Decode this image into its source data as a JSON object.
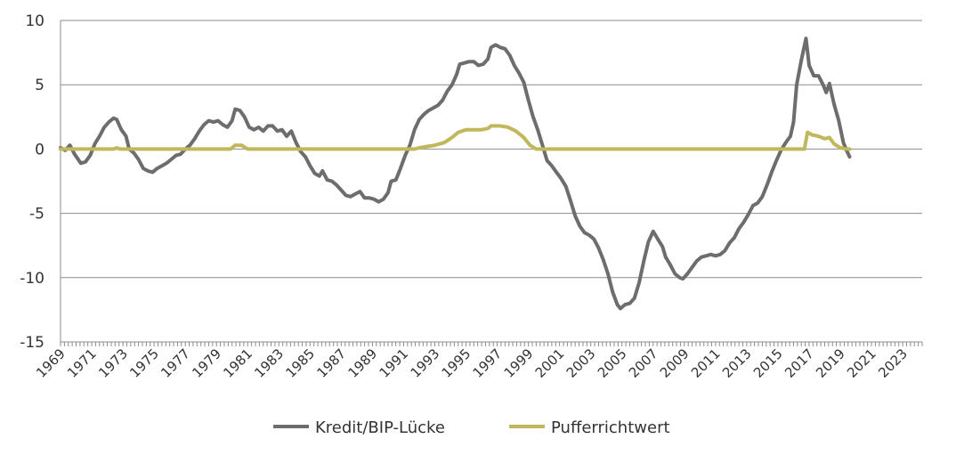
{
  "chart_data": {
    "type": "line",
    "title": "",
    "xlabel": "",
    "ylabel": "",
    "xlim": [
      1969,
      2024.25
    ],
    "ylim": [
      -15,
      10
    ],
    "yticks": [
      10,
      5,
      0,
      -5,
      -10,
      -15
    ],
    "ytick_labels": [
      "10",
      "5",
      "0",
      "-5",
      "-10",
      "-15"
    ],
    "xtick_labels": [
      "1969",
      "1971",
      "1973",
      "1975",
      "1977",
      "1979",
      "1981",
      "1983",
      "1985",
      "1987",
      "1989",
      "1991",
      "1993",
      "1995",
      "1997",
      "1999",
      "2001",
      "2003",
      "2005",
      "2007",
      "2009",
      "2011",
      "2013",
      "2015",
      "2017",
      "2019",
      "2021",
      "2023"
    ],
    "grid": "horizontal",
    "legend_position": "bottom",
    "series": [
      {
        "name": "Kredit/BIP-Lücke",
        "color": "#6d6d6d",
        "points": [
          [
            1969.0,
            0.1
          ],
          [
            1969.3,
            -0.1
          ],
          [
            1969.6,
            0.3
          ],
          [
            1969.9,
            -0.4
          ],
          [
            1970.3,
            -1.1
          ],
          [
            1970.6,
            -1.0
          ],
          [
            1970.9,
            -0.5
          ],
          [
            1971.2,
            0.4
          ],
          [
            1971.5,
            1.0
          ],
          [
            1971.8,
            1.7
          ],
          [
            1972.1,
            2.1
          ],
          [
            1972.4,
            2.4
          ],
          [
            1972.6,
            2.3
          ],
          [
            1972.9,
            1.5
          ],
          [
            1973.2,
            1.0
          ],
          [
            1973.4,
            0.0
          ],
          [
            1973.7,
            -0.3
          ],
          [
            1974.0,
            -0.8
          ],
          [
            1974.3,
            -1.5
          ],
          [
            1974.6,
            -1.7
          ],
          [
            1974.9,
            -1.8
          ],
          [
            1975.2,
            -1.5
          ],
          [
            1975.5,
            -1.3
          ],
          [
            1975.8,
            -1.1
          ],
          [
            1976.1,
            -0.8
          ],
          [
            1976.4,
            -0.5
          ],
          [
            1976.7,
            -0.4
          ],
          [
            1977.0,
            0.0
          ],
          [
            1977.3,
            0.3
          ],
          [
            1977.6,
            0.8
          ],
          [
            1977.9,
            1.4
          ],
          [
            1978.2,
            1.9
          ],
          [
            1978.5,
            2.2
          ],
          [
            1978.8,
            2.1
          ],
          [
            1979.1,
            2.2
          ],
          [
            1979.4,
            1.9
          ],
          [
            1979.7,
            1.7
          ],
          [
            1980.0,
            2.2
          ],
          [
            1980.2,
            3.1
          ],
          [
            1980.5,
            3.0
          ],
          [
            1980.8,
            2.5
          ],
          [
            1981.1,
            1.7
          ],
          [
            1981.4,
            1.5
          ],
          [
            1981.7,
            1.7
          ],
          [
            1982.0,
            1.4
          ],
          [
            1982.3,
            1.8
          ],
          [
            1982.6,
            1.8
          ],
          [
            1982.9,
            1.4
          ],
          [
            1983.2,
            1.5
          ],
          [
            1983.5,
            1.0
          ],
          [
            1983.8,
            1.4
          ],
          [
            1984.1,
            0.5
          ],
          [
            1984.4,
            -0.2
          ],
          [
            1984.7,
            -0.6
          ],
          [
            1985.0,
            -1.3
          ],
          [
            1985.3,
            -1.9
          ],
          [
            1985.6,
            -2.1
          ],
          [
            1985.8,
            -1.7
          ],
          [
            1986.1,
            -2.4
          ],
          [
            1986.4,
            -2.5
          ],
          [
            1986.7,
            -2.8
          ],
          [
            1987.0,
            -3.2
          ],
          [
            1987.3,
            -3.6
          ],
          [
            1987.6,
            -3.7
          ],
          [
            1987.9,
            -3.5
          ],
          [
            1988.2,
            -3.3
          ],
          [
            1988.5,
            -3.8
          ],
          [
            1988.8,
            -3.8
          ],
          [
            1989.1,
            -3.9
          ],
          [
            1989.4,
            -4.1
          ],
          [
            1989.7,
            -3.9
          ],
          [
            1990.0,
            -3.4
          ],
          [
            1990.2,
            -2.5
          ],
          [
            1990.5,
            -2.4
          ],
          [
            1990.8,
            -1.5
          ],
          [
            1991.1,
            -0.5
          ],
          [
            1991.4,
            0.3
          ],
          [
            1991.7,
            1.5
          ],
          [
            1992.0,
            2.3
          ],
          [
            1992.3,
            2.7
          ],
          [
            1992.6,
            3.0
          ],
          [
            1992.9,
            3.2
          ],
          [
            1993.2,
            3.4
          ],
          [
            1993.5,
            3.8
          ],
          [
            1993.8,
            4.5
          ],
          [
            1994.1,
            5.0
          ],
          [
            1994.4,
            5.8
          ],
          [
            1994.6,
            6.6
          ],
          [
            1994.9,
            6.7
          ],
          [
            1995.2,
            6.8
          ],
          [
            1995.5,
            6.8
          ],
          [
            1995.8,
            6.5
          ],
          [
            1996.1,
            6.6
          ],
          [
            1996.4,
            7.0
          ],
          [
            1996.6,
            7.9
          ],
          [
            1996.9,
            8.1
          ],
          [
            1997.2,
            7.9
          ],
          [
            1997.5,
            7.8
          ],
          [
            1997.8,
            7.3
          ],
          [
            1998.1,
            6.5
          ],
          [
            1998.4,
            5.9
          ],
          [
            1998.7,
            5.2
          ],
          [
            1999.0,
            3.8
          ],
          [
            1999.3,
            2.5
          ],
          [
            1999.6,
            1.5
          ],
          [
            1999.9,
            0.3
          ],
          [
            2000.2,
            -0.9
          ],
          [
            2000.5,
            -1.3
          ],
          [
            2000.8,
            -1.8
          ],
          [
            2001.1,
            -2.3
          ],
          [
            2001.4,
            -2.9
          ],
          [
            2001.7,
            -4.0
          ],
          [
            2002.0,
            -5.2
          ],
          [
            2002.3,
            -6.0
          ],
          [
            2002.6,
            -6.5
          ],
          [
            2002.9,
            -6.7
          ],
          [
            2003.2,
            -7.0
          ],
          [
            2003.5,
            -7.7
          ],
          [
            2003.8,
            -8.6
          ],
          [
            2004.1,
            -9.7
          ],
          [
            2004.4,
            -11.1
          ],
          [
            2004.7,
            -12.1
          ],
          [
            2004.9,
            -12.4
          ],
          [
            2005.2,
            -12.1
          ],
          [
            2005.5,
            -12.0
          ],
          [
            2005.8,
            -11.6
          ],
          [
            2006.1,
            -10.4
          ],
          [
            2006.4,
            -8.7
          ],
          [
            2006.7,
            -7.2
          ],
          [
            2007.0,
            -6.4
          ],
          [
            2007.3,
            -7.0
          ],
          [
            2007.6,
            -7.6
          ],
          [
            2007.8,
            -8.4
          ],
          [
            2008.1,
            -9.0
          ],
          [
            2008.4,
            -9.7
          ],
          [
            2008.7,
            -10.0
          ],
          [
            2008.9,
            -10.1
          ],
          [
            2009.2,
            -9.7
          ],
          [
            2009.5,
            -9.2
          ],
          [
            2009.8,
            -8.7
          ],
          [
            2010.1,
            -8.4
          ],
          [
            2010.4,
            -8.3
          ],
          [
            2010.7,
            -8.2
          ],
          [
            2011.0,
            -8.3
          ],
          [
            2011.3,
            -8.2
          ],
          [
            2011.6,
            -7.9
          ],
          [
            2011.9,
            -7.3
          ],
          [
            2012.2,
            -6.9
          ],
          [
            2012.5,
            -6.2
          ],
          [
            2012.8,
            -5.7
          ],
          [
            2013.1,
            -5.1
          ],
          [
            2013.4,
            -4.4
          ],
          [
            2013.7,
            -4.2
          ],
          [
            2014.0,
            -3.7
          ],
          [
            2014.3,
            -2.8
          ],
          [
            2014.6,
            -1.8
          ],
          [
            2014.9,
            -0.9
          ],
          [
            2015.2,
            -0.1
          ],
          [
            2015.5,
            0.5
          ],
          [
            2015.8,
            1.0
          ],
          [
            2016.0,
            2.1
          ],
          [
            2016.2,
            5.0
          ],
          [
            2016.5,
            6.9
          ],
          [
            2016.8,
            8.6
          ],
          [
            2017.0,
            6.5
          ],
          [
            2017.3,
            5.7
          ],
          [
            2017.6,
            5.7
          ],
          [
            2017.9,
            5.0
          ],
          [
            2018.1,
            4.4
          ],
          [
            2018.3,
            5.1
          ],
          [
            2018.6,
            3.5
          ],
          [
            2018.9,
            2.2
          ],
          [
            2019.2,
            0.5
          ],
          [
            2019.4,
            -0.1
          ],
          [
            2019.6,
            -0.6
          ]
        ]
      },
      {
        "name": "Pufferrichtwert",
        "color": "#c0b85a",
        "points": [
          [
            1969.0,
            0.0
          ],
          [
            1972.4,
            0.0
          ],
          [
            1972.6,
            0.1
          ],
          [
            1972.8,
            0.0
          ],
          [
            1979.9,
            0.0
          ],
          [
            1980.2,
            0.3
          ],
          [
            1980.6,
            0.3
          ],
          [
            1981.0,
            0.0
          ],
          [
            1991.7,
            0.0
          ],
          [
            1992.0,
            0.1
          ],
          [
            1992.5,
            0.2
          ],
          [
            1993.0,
            0.3
          ],
          [
            1993.6,
            0.5
          ],
          [
            1994.1,
            0.9
          ],
          [
            1994.5,
            1.3
          ],
          [
            1995.0,
            1.5
          ],
          [
            1995.5,
            1.5
          ],
          [
            1996.0,
            1.5
          ],
          [
            1996.4,
            1.6
          ],
          [
            1996.6,
            1.8
          ],
          [
            1997.2,
            1.8
          ],
          [
            1997.7,
            1.7
          ],
          [
            1998.2,
            1.4
          ],
          [
            1998.7,
            0.9
          ],
          [
            1999.1,
            0.3
          ],
          [
            1999.5,
            0.0
          ],
          [
            2016.7,
            0.0
          ],
          [
            2016.9,
            1.3
          ],
          [
            2017.2,
            1.1
          ],
          [
            2017.6,
            1.0
          ],
          [
            2018.0,
            0.8
          ],
          [
            2018.3,
            0.9
          ],
          [
            2018.6,
            0.4
          ],
          [
            2019.0,
            0.1
          ],
          [
            2019.4,
            0.0
          ],
          [
            2019.6,
            0.0
          ]
        ]
      }
    ]
  }
}
